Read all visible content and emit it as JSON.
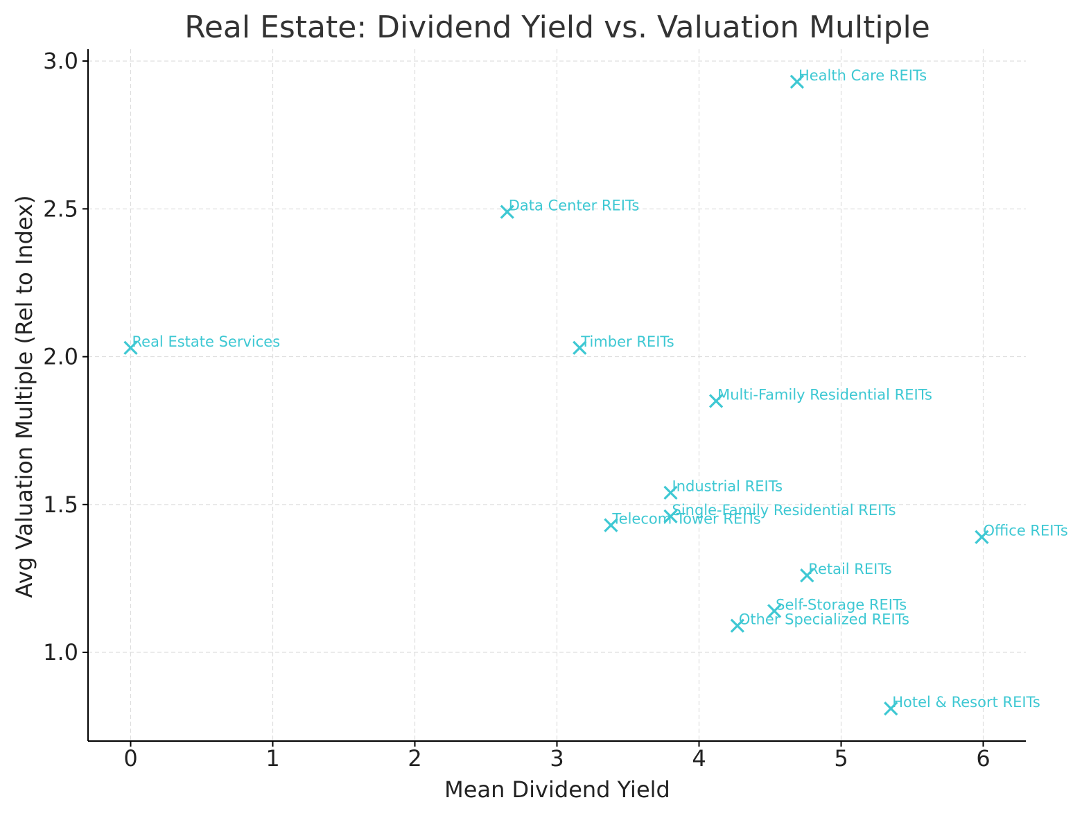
{
  "chart_data": {
    "type": "scatter",
    "title": "Real Estate: Dividend Yield vs. Valuation Multiple",
    "xlabel": "Mean Dividend Yield",
    "ylabel": "Avg Valuation Multiple (Rel to Index)",
    "xlim": [
      -0.3,
      6.3
    ],
    "ylim": [
      0.7,
      3.04
    ],
    "xticks": [
      0,
      1,
      2,
      3,
      4,
      5,
      6
    ],
    "yticks": [
      1.0,
      1.5,
      2.0,
      2.5,
      3.0
    ],
    "xtick_labels": [
      "0",
      "1",
      "2",
      "3",
      "4",
      "5",
      "6"
    ],
    "ytick_labels": [
      "1.0",
      "1.5",
      "2.0",
      "2.5",
      "3.0"
    ],
    "grid": true,
    "marker": "x",
    "color": "#3ec8d3",
    "points": [
      {
        "label": "Health Care REITs",
        "x": 4.69,
        "y": 2.93
      },
      {
        "label": "Data Center REITs",
        "x": 2.65,
        "y": 2.49
      },
      {
        "label": "Real Estate Services",
        "x": 0.0,
        "y": 2.03
      },
      {
        "label": "Timber REITs",
        "x": 3.16,
        "y": 2.03
      },
      {
        "label": "Multi-Family Residential REITs",
        "x": 4.12,
        "y": 1.85
      },
      {
        "label": "Industrial REITs",
        "x": 3.8,
        "y": 1.54
      },
      {
        "label": "Single-Family Residential REITs",
        "x": 3.8,
        "y": 1.46
      },
      {
        "label": "Telecom Tower REITs",
        "x": 3.38,
        "y": 1.43
      },
      {
        "label": "Office REITs",
        "x": 5.99,
        "y": 1.39
      },
      {
        "label": "Retail REITs",
        "x": 4.76,
        "y": 1.26
      },
      {
        "label": "Self-Storage REITs",
        "x": 4.53,
        "y": 1.14
      },
      {
        "label": "Other Specialized REITs",
        "x": 4.27,
        "y": 1.09
      },
      {
        "label": "Hotel & Resort REITs",
        "x": 5.35,
        "y": 0.81
      }
    ]
  }
}
